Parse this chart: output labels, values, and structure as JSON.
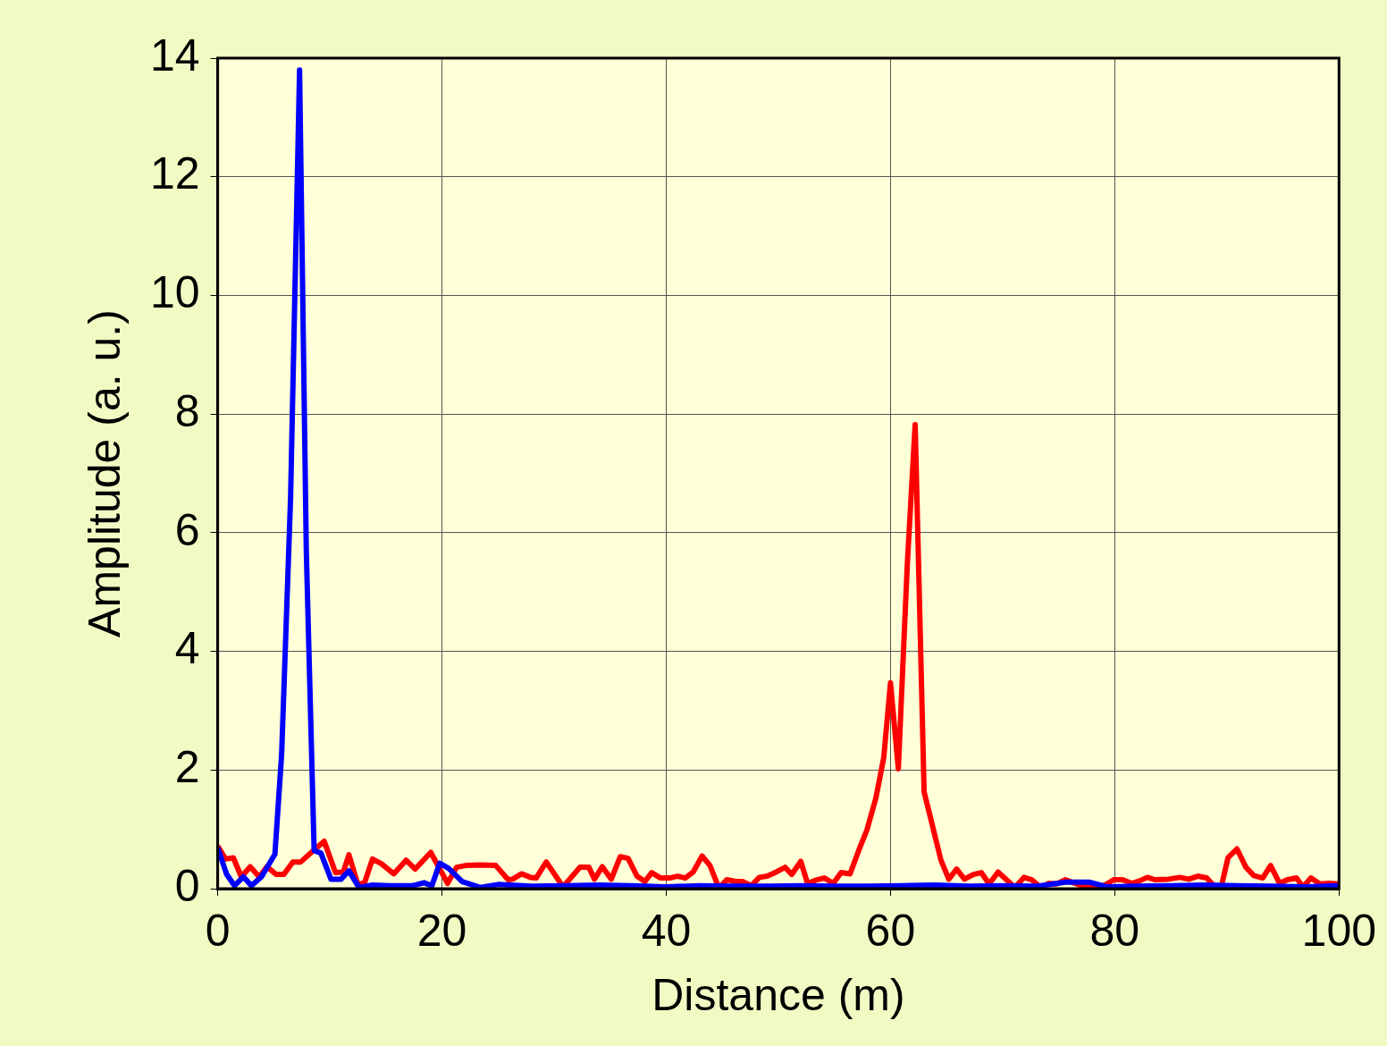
{
  "chart_data": {
    "type": "line",
    "xlabel": "Distance (m)",
    "ylabel": "Amplitude (a. u.)",
    "xlim": [
      0,
      100
    ],
    "ylim": [
      0,
      14
    ],
    "xticks": [
      0,
      20,
      40,
      60,
      80,
      100
    ],
    "yticks": [
      0,
      2,
      4,
      6,
      8,
      10,
      12,
      14
    ],
    "grid": true,
    "legend": false,
    "marker": "none",
    "line_style": "solid",
    "series": [
      {
        "color": "#0000ff",
        "x": [
          0,
          0.8,
          1.5,
          2.3,
          3,
          3.9,
          5.1,
          5.7,
          6.5,
          7.3,
          7.9,
          8.6,
          9.2,
          10.1,
          11,
          11.7,
          12.6,
          13.8,
          15.4,
          17.4,
          18.4,
          19.1,
          19.8,
          20.6,
          21.8,
          23.4,
          25,
          28,
          31,
          34,
          37,
          40,
          43,
          46,
          49,
          52,
          55,
          58,
          61,
          64,
          67,
          70,
          73,
          75.6,
          77.7,
          79.3,
          82,
          85,
          88,
          91,
          94,
          97,
          100
        ],
        "values": [
          0.69,
          0.24,
          0.05,
          0.2,
          0.05,
          0.2,
          0.58,
          2.26,
          6.6,
          13.8,
          5.7,
          0.64,
          0.6,
          0.16,
          0.16,
          0.3,
          0.02,
          0.06,
          0.05,
          0.05,
          0.1,
          0.05,
          0.43,
          0.34,
          0.12,
          0.02,
          0.07,
          0.04,
          0.05,
          0.06,
          0.05,
          0.03,
          0.05,
          0.04,
          0.04,
          0.05,
          0.04,
          0.04,
          0.05,
          0.06,
          0.04,
          0.05,
          0.04,
          0.11,
          0.11,
          0.03,
          0.04,
          0.05,
          0.06,
          0.05,
          0.04,
          0.03,
          0.05
        ]
      },
      {
        "color": "#ff0000",
        "x": [
          0,
          0.7,
          1.4,
          2.1,
          2.9,
          3.7,
          4.4,
          5.2,
          5.9,
          6.7,
          7.4,
          8.7,
          9.5,
          10.5,
          11.2,
          11.7,
          12.5,
          13.1,
          13.8,
          14.6,
          15.7,
          16.8,
          17.6,
          19,
          20.5,
          21.3,
          22.1,
          23.4,
          24.8,
          25.9,
          26.3,
          27.1,
          27.9,
          28.4,
          29.3,
          30.8,
          32.3,
          33.1,
          33.6,
          34.3,
          35.1,
          35.9,
          36.6,
          37.4,
          38.1,
          38.7,
          39.5,
          40.3,
          41,
          41.7,
          42.4,
          43.2,
          43.9,
          44.7,
          45.4,
          46.2,
          46.8,
          47.6,
          48.3,
          49,
          49.8,
          50.6,
          51.2,
          52,
          52.6,
          53.3,
          54.1,
          54.9,
          55.6,
          56.4,
          57.2,
          57.9,
          58.7,
          59.4,
          60,
          60.7,
          61.5,
          62.2,
          63,
          64.5,
          65.2,
          65.9,
          66.6,
          67.4,
          68.1,
          68.8,
          69.6,
          71.1,
          71.9,
          72.6,
          73.4,
          74.1,
          74.8,
          75.6,
          76.3,
          77.1,
          77.7,
          78.5,
          79.3,
          79.9,
          80.7,
          81.5,
          82.2,
          82.9,
          83.6,
          84.8,
          85.8,
          86.6,
          87.4,
          88.2,
          88.8,
          89.5,
          90.1,
          90.9,
          91.7,
          92.4,
          93.2,
          93.9,
          94.7,
          95.4,
          96.2,
          96.8,
          97.5,
          98.3,
          99.1,
          100
        ],
        "values": [
          0.72,
          0.5,
          0.52,
          0.2,
          0.37,
          0.2,
          0.37,
          0.24,
          0.24,
          0.45,
          0.45,
          0.67,
          0.8,
          0.27,
          0.28,
          0.57,
          0.07,
          0.1,
          0.5,
          0.42,
          0.25,
          0.48,
          0.33,
          0.61,
          0.09,
          0.36,
          0.39,
          0.4,
          0.39,
          0.15,
          0.16,
          0.25,
          0.19,
          0.18,
          0.45,
          0.03,
          0.36,
          0.36,
          0.16,
          0.37,
          0.16,
          0.54,
          0.51,
          0.21,
          0.12,
          0.27,
          0.18,
          0.18,
          0.21,
          0.18,
          0.28,
          0.55,
          0.39,
          0.01,
          0.15,
          0.12,
          0.12,
          0.05,
          0.19,
          0.21,
          0.28,
          0.36,
          0.24,
          0.46,
          0.09,
          0.14,
          0.18,
          0.09,
          0.27,
          0.25,
          0.66,
          0.99,
          1.53,
          2.21,
          3.47,
          2.02,
          5.47,
          7.82,
          1.63,
          0.48,
          0.16,
          0.33,
          0.16,
          0.24,
          0.27,
          0.08,
          0.28,
          0.02,
          0.19,
          0.15,
          0.02,
          0.09,
          0.08,
          0.15,
          0.1,
          0.05,
          0.05,
          0.0,
          0.08,
          0.15,
          0.15,
          0.09,
          0.13,
          0.19,
          0.15,
          0.16,
          0.19,
          0.16,
          0.21,
          0.18,
          0.06,
          0.03,
          0.52,
          0.67,
          0.36,
          0.22,
          0.18,
          0.39,
          0.09,
          0.15,
          0.18,
          0.03,
          0.18,
          0.08,
          0.09,
          0.08
        ]
      }
    ]
  }
}
